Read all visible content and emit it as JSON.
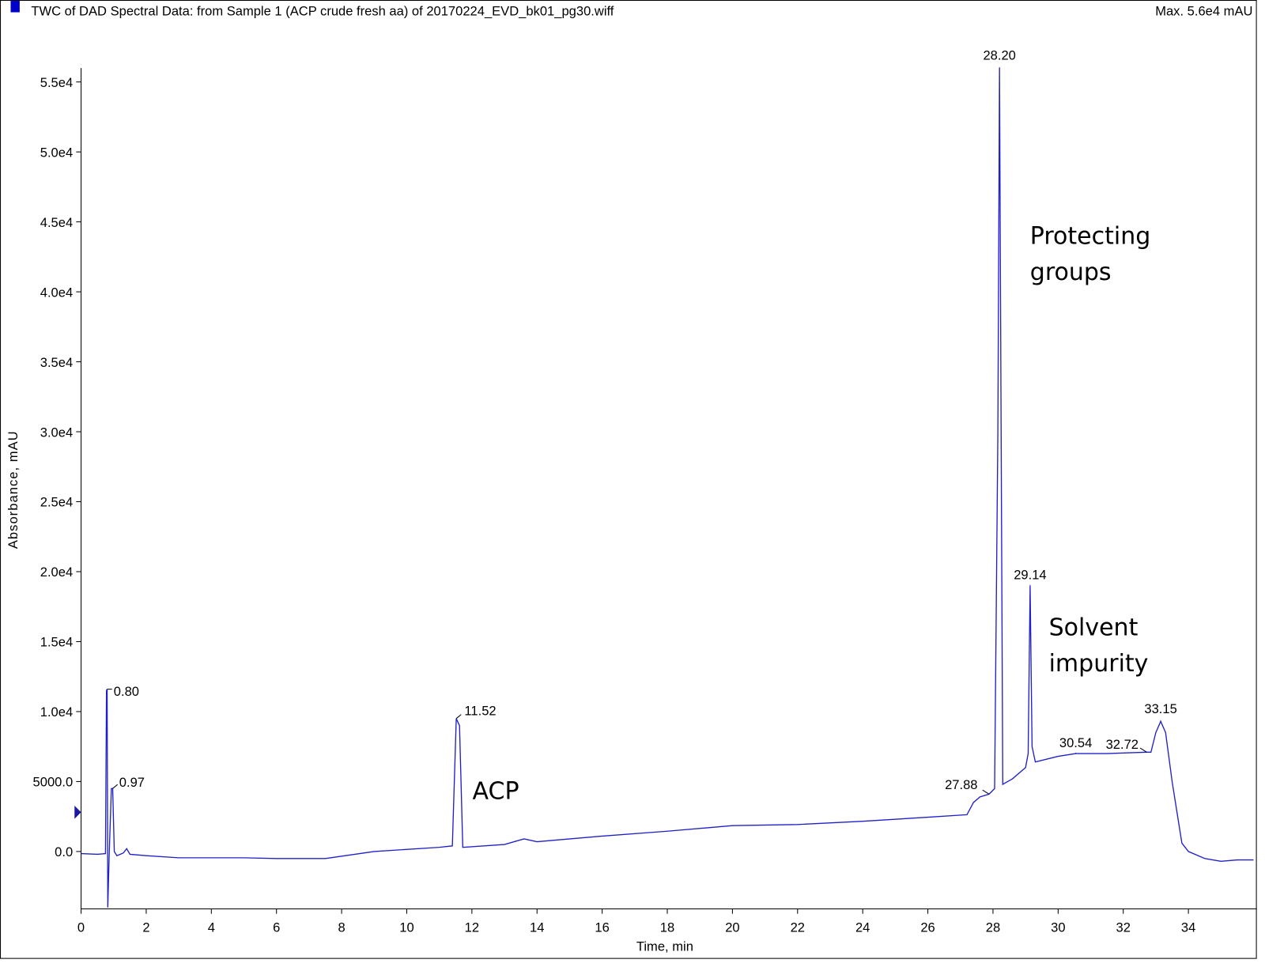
{
  "chart_data": {
    "type": "line",
    "title": "TWC of DAD Spectral Data: from Sample 1 (ACP crude fresh aa) of 20170224_EVD_bk01_pg30.wiff",
    "subtitle": "Max. 5.6e4 mAU",
    "x_label": "Time, min",
    "y_label": "Absorbance, mAU",
    "color": "#2020c8",
    "x": [
      0.0,
      0.5,
      0.75,
      0.78,
      0.8,
      0.82,
      0.86,
      0.93,
      0.97,
      1.02,
      1.1,
      1.3,
      1.4,
      1.5,
      2.0,
      3.0,
      5.0,
      6.0,
      7.5,
      9.0,
      11.0,
      11.4,
      11.52,
      11.62,
      11.72,
      13.0,
      13.6,
      14.0,
      16.0,
      18.0,
      20.0,
      22.0,
      24.0,
      26.0,
      27.2,
      27.4,
      27.6,
      27.88,
      28.05,
      28.15,
      28.2,
      28.25,
      28.3,
      28.6,
      29.0,
      29.08,
      29.14,
      29.2,
      29.3,
      30.0,
      30.54,
      31.5,
      32.72,
      32.85,
      33.0,
      33.15,
      33.3,
      33.5,
      33.8,
      34.0,
      34.5,
      35.0,
      35.5,
      36.0
    ],
    "values": [
      -150,
      -200,
      -150,
      11500,
      11600,
      -4000,
      -500,
      4500,
      4500,
      0,
      -300,
      -100,
      200,
      -200,
      -300,
      -450,
      -450,
      -500,
      -500,
      0,
      300,
      400,
      9500,
      9000,
      300,
      500,
      900,
      700,
      1100,
      1450,
      1850,
      1930,
      2160,
      2450,
      2630,
      3500,
      3900,
      4100,
      4500,
      30000,
      56000,
      30000,
      4800,
      5200,
      6000,
      7000,
      19000,
      7500,
      6400,
      6800,
      7000,
      7000,
      7100,
      7100,
      8500,
      9300,
      8500,
      5000,
      600,
      0,
      -500,
      -700,
      -600,
      -600
    ],
    "peaks": {
      "x": [
        0.8,
        0.97,
        11.52,
        27.88,
        28.2,
        29.14,
        30.54,
        32.72,
        33.15
      ],
      "y": [
        11600,
        4500,
        9500,
        4100,
        56000,
        19000,
        7000,
        7100,
        9300
      ],
      "labels": [
        "0.80",
        "0.97",
        "11.52",
        "27.88",
        "28.20",
        "29.14",
        "30.54",
        "32.72",
        "33.15"
      ]
    },
    "annotations": [
      [
        "ACP"
      ],
      [
        "Protecting",
        "groups"
      ],
      [
        "Solvent",
        "impurity"
      ]
    ],
    "xlim": [
      0,
      36.1
    ],
    "ylim": [
      -4100,
      56000
    ],
    "xticks": [
      0,
      2,
      4,
      6,
      8,
      10,
      12,
      14,
      16,
      18,
      20,
      22,
      24,
      26,
      28,
      30,
      32,
      34
    ],
    "yticks": [
      {
        "value": 0,
        "label": "0.0"
      },
      {
        "value": 5000,
        "label": "5000.0"
      },
      {
        "value": 10000,
        "label": "1.0e4"
      },
      {
        "value": 15000,
        "label": "1.5e4"
      },
      {
        "value": 20000,
        "label": "2.0e4"
      },
      {
        "value": 25000,
        "label": "2.5e4"
      },
      {
        "value": 30000,
        "label": "3.0e4"
      },
      {
        "value": 35000,
        "label": "3.5e4"
      },
      {
        "value": 40000,
        "label": "4.0e4"
      },
      {
        "value": 45000,
        "label": "4.5e4"
      },
      {
        "value": 50000,
        "label": "5.0e4"
      },
      {
        "value": 55000,
        "label": "5.5e4"
      }
    ]
  }
}
